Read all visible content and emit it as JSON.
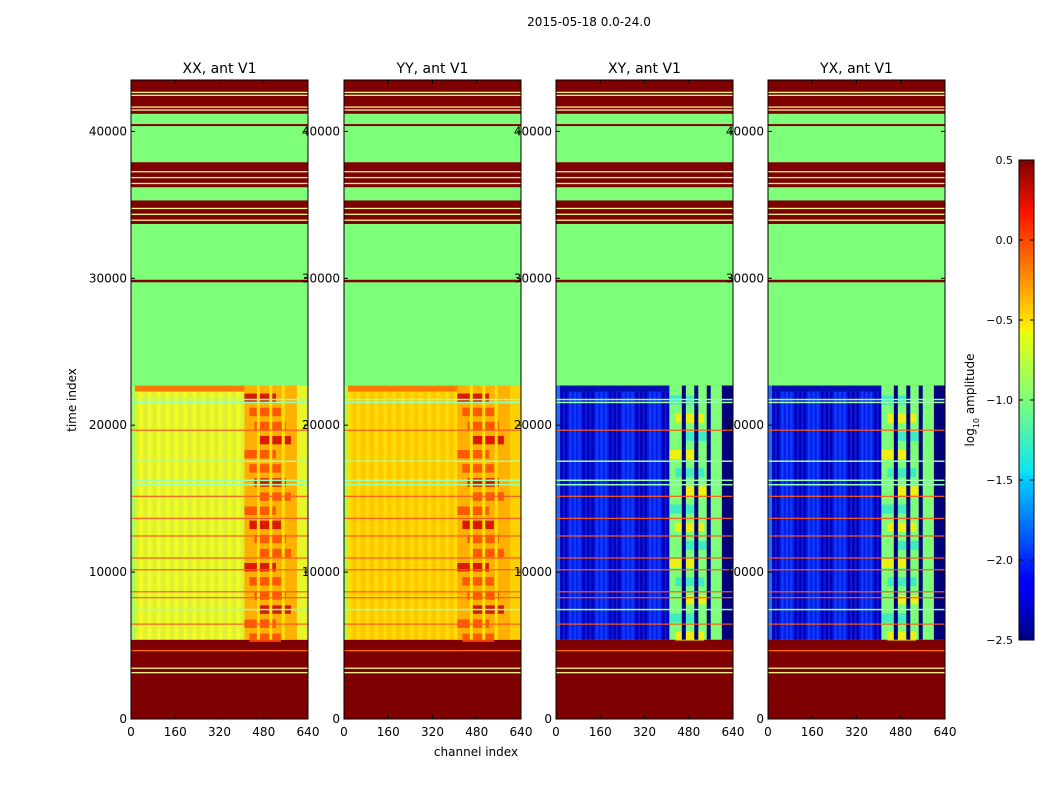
{
  "figure": {
    "suptitle": "2015-05-18 0.0-24.0",
    "xlabel": "channel index",
    "ylabel": "time index"
  },
  "colors": {
    "dark_red": "#7f0000",
    "green": "#7dff7a",
    "band_line": "#eef58a"
  },
  "chart_data": [
    {
      "type": "heatmap",
      "title": "XX, ant V1",
      "x_range": [
        0,
        640
      ],
      "y_range": [
        0,
        43500
      ],
      "x_ticks": [
        "0",
        "160",
        "320",
        "480",
        "640"
      ],
      "y_ticks": [
        "0",
        "10000",
        "20000",
        "30000",
        "40000"
      ],
      "regions": [
        {
          "from": 0,
          "to": 5400,
          "level": "saturated (dark red)"
        },
        {
          "from": 5400,
          "to": 22700,
          "level": "yellow with red columns 410-600"
        },
        {
          "from": 22700,
          "to": 33700,
          "level": "flat green"
        },
        {
          "from": 33700,
          "to": 43500,
          "level": "dark red bands with green gaps"
        }
      ]
    },
    {
      "type": "heatmap",
      "title": "YY, ant V1",
      "x_range": [
        0,
        640
      ],
      "y_range": [
        0,
        43500
      ],
      "x_ticks": [
        "0",
        "160",
        "320",
        "480",
        "640"
      ],
      "y_ticks": [
        "0",
        "10000",
        "20000",
        "30000",
        "40000"
      ],
      "regions": [
        {
          "from": 0,
          "to": 5400,
          "level": "saturated (dark red)"
        },
        {
          "from": 5400,
          "to": 22700,
          "level": "orange-yellow with red columns 410-600"
        },
        {
          "from": 22700,
          "to": 33700,
          "level": "flat green"
        },
        {
          "from": 33700,
          "to": 43500,
          "level": "dark red bands with green gaps"
        }
      ]
    },
    {
      "type": "heatmap",
      "title": "XY, ant V1",
      "x_range": [
        0,
        640
      ],
      "y_range": [
        0,
        43500
      ],
      "x_ticks": [
        "0",
        "160",
        "320",
        "480",
        "640"
      ],
      "y_ticks": [
        "0",
        "10000",
        "20000",
        "30000",
        "40000"
      ],
      "regions": [
        {
          "from": 0,
          "to": 5400,
          "level": "saturated (dark red)"
        },
        {
          "from": 5400,
          "to": 22700,
          "level": "deep blue with cyan/yellow columns 410-600"
        },
        {
          "from": 22700,
          "to": 33700,
          "level": "flat green"
        },
        {
          "from": 33700,
          "to": 43500,
          "level": "dark red bands with green gaps"
        }
      ]
    },
    {
      "type": "heatmap",
      "title": "YX, ant V1",
      "x_range": [
        0,
        640
      ],
      "y_range": [
        0,
        43500
      ],
      "x_ticks": [
        "0",
        "160",
        "320",
        "480",
        "640"
      ],
      "y_ticks": [
        "0",
        "10000",
        "20000",
        "30000",
        "40000"
      ],
      "regions": [
        {
          "from": 0,
          "to": 5400,
          "level": "saturated (dark red)"
        },
        {
          "from": 5400,
          "to": 22700,
          "level": "deep blue with cyan/yellow columns 410-600"
        },
        {
          "from": 22700,
          "to": 33700,
          "level": "flat green"
        },
        {
          "from": 33700,
          "to": 43500,
          "level": "dark red bands with green gaps"
        }
      ]
    }
  ],
  "colorbar": {
    "label": "log",
    "label_subscript": "10",
    "label_suffix": " amplitude",
    "range": [
      -2.5,
      0.5
    ],
    "ticks": [
      "0.5",
      "0.0",
      "−0.5",
      "−1.0",
      "−1.5",
      "−2.0",
      "−2.5"
    ]
  }
}
